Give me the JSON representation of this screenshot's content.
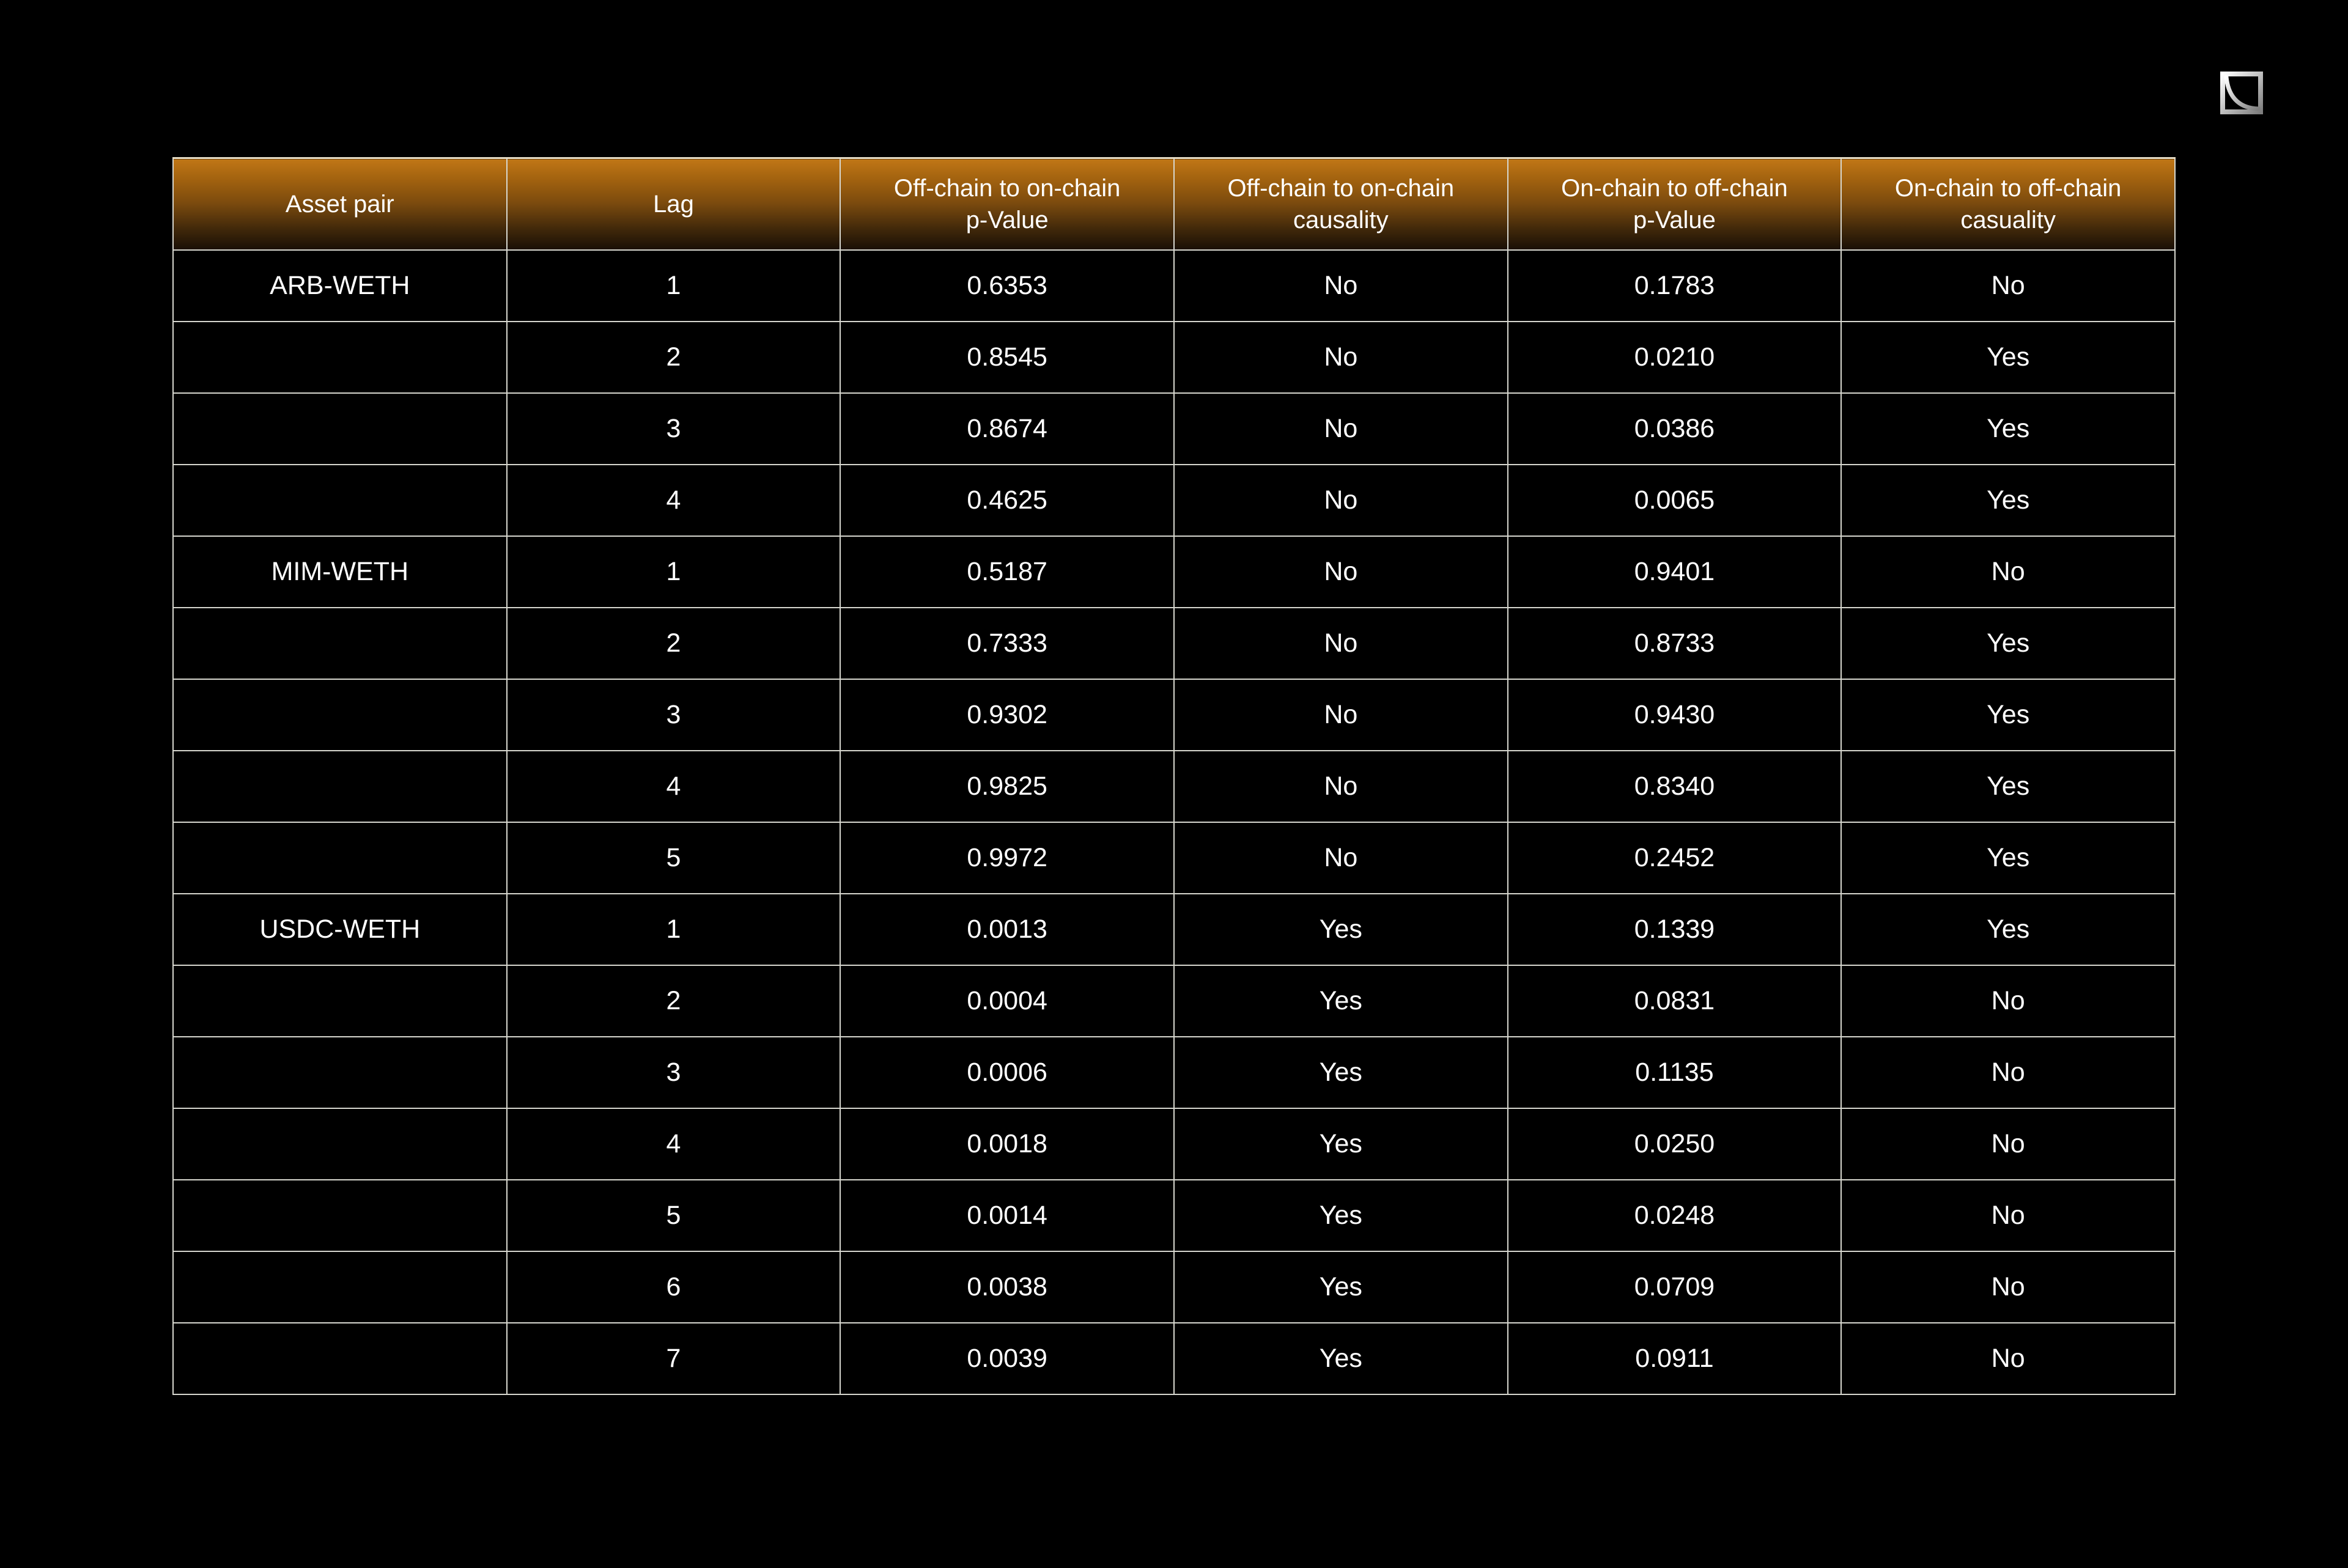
{
  "colors": {
    "background": "#000000",
    "text": "#ffffff",
    "cell_border": "#d7d7cf",
    "header_top_border": "#e7ddc6",
    "header_gradient_top": "#c07616",
    "header_gradient_mid": "#7c4b0e",
    "header_gradient_bottom": "#190f05"
  },
  "logo": {
    "icon": "square-decay-curve-logo",
    "frame_color_light": "#ffffff",
    "frame_color_dark": "#7f7f7f"
  },
  "chart_data": {
    "type": "table",
    "title": "",
    "legend": "none",
    "grid": "full-borders",
    "columns": [
      {
        "id": "asset_pair",
        "lines": [
          "Asset pair"
        ]
      },
      {
        "id": "lag",
        "lines": [
          "Lag"
        ]
      },
      {
        "id": "off_to_on_p_value",
        "lines": [
          "Off-chain to on-chain",
          "p-Value"
        ]
      },
      {
        "id": "off_to_on_causality",
        "lines": [
          "Off-chain to on-chain",
          "causality"
        ]
      },
      {
        "id": "on_to_off_p_value",
        "lines": [
          "On-chain to off-chain",
          "p-Value"
        ]
      },
      {
        "id": "on_to_off_causality",
        "lines": [
          "On-chain to off-chain",
          "casuality"
        ]
      }
    ],
    "rows": [
      [
        "ARB-WETH",
        "1",
        "0.6353",
        "No",
        "0.1783",
        "No"
      ],
      [
        "",
        "2",
        "0.8545",
        "No",
        "0.0210",
        "Yes"
      ],
      [
        "",
        "3",
        "0.8674",
        "No",
        "0.0386",
        "Yes"
      ],
      [
        "",
        "4",
        "0.4625",
        "No",
        "0.0065",
        "Yes"
      ],
      [
        "MIM-WETH",
        "1",
        "0.5187",
        "No",
        "0.9401",
        "No"
      ],
      [
        "",
        "2",
        "0.7333",
        "No",
        "0.8733",
        "Yes"
      ],
      [
        "",
        "3",
        "0.9302",
        "No",
        "0.9430",
        "Yes"
      ],
      [
        "",
        "4",
        "0.9825",
        "No",
        "0.8340",
        "Yes"
      ],
      [
        "",
        "5",
        "0.9972",
        "No",
        "0.2452",
        "Yes"
      ],
      [
        "USDC-WETH",
        "1",
        "0.0013",
        "Yes",
        "0.1339",
        "Yes"
      ],
      [
        "",
        "2",
        "0.0004",
        "Yes",
        "0.0831",
        "No"
      ],
      [
        "",
        "3",
        "0.0006",
        "Yes",
        "0.1135",
        "No"
      ],
      [
        "",
        "4",
        "0.0018",
        "Yes",
        "0.0250",
        "No"
      ],
      [
        "",
        "5",
        "0.0014",
        "Yes",
        "0.0248",
        "No"
      ],
      [
        "",
        "6",
        "0.0038",
        "Yes",
        "0.0709",
        "No"
      ],
      [
        "",
        "7",
        "0.0039",
        "Yes",
        "0.0911",
        "No"
      ]
    ]
  }
}
